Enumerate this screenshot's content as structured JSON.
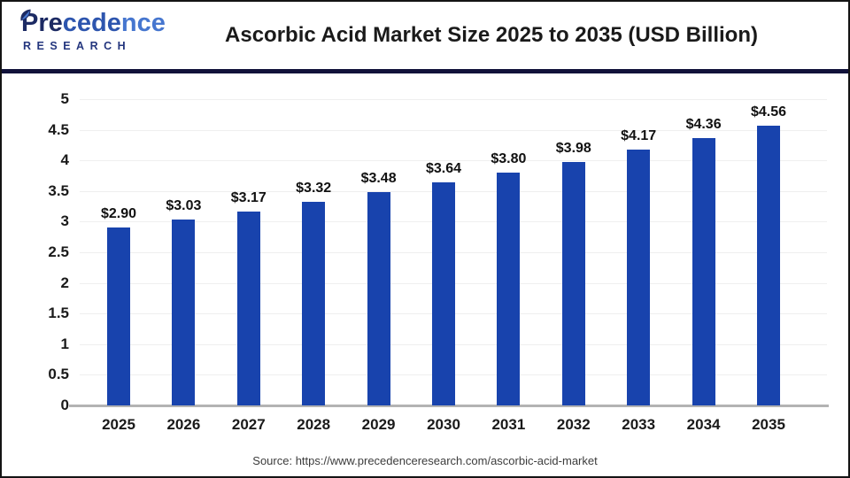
{
  "header": {
    "logo": {
      "part1": "Pre",
      "part2": "cede",
      "part3": "nce",
      "bottom": "RESEARCH"
    },
    "title": "Ascorbic Acid Market Size 2025 to 2035 (USD Billion)"
  },
  "chart_data": {
    "type": "bar",
    "title": "Ascorbic Acid Market Size 2025 to 2035 (USD Billion)",
    "categories": [
      "2025",
      "2026",
      "2027",
      "2028",
      "2029",
      "2030",
      "2031",
      "2032",
      "2033",
      "2034",
      "2035"
    ],
    "values": [
      2.9,
      3.03,
      3.17,
      3.32,
      3.48,
      3.64,
      3.8,
      3.98,
      4.17,
      4.36,
      4.56
    ],
    "value_labels": [
      "$2.90",
      "$3.03",
      "$3.17",
      "$3.32",
      "$3.48",
      "$3.64",
      "$3.80",
      "$3.98",
      "$4.17",
      "$4.36",
      "$4.56"
    ],
    "xlabel": "",
    "ylabel": "",
    "ylim": [
      0,
      5
    ],
    "ytick_step": 0.5,
    "yticks": [
      "0",
      "0.5",
      "1",
      "1.5",
      "2",
      "2.5",
      "3",
      "3.5",
      "4",
      "4.5",
      "5"
    ],
    "grid": true,
    "legend": false,
    "bar_color": "#1843ad",
    "gridline_color": "#efefef",
    "baseline_color": "#b3b3b3"
  },
  "footer": {
    "source": "Source: https://www.precedenceresearch.com/ascorbic-acid-market"
  },
  "colors": {
    "accent_blue": "#1843ad",
    "divider_navy": "#11123a",
    "logo_dark": "#1c2a63",
    "logo_mid": "#2d55ae",
    "logo_light": "#4676cf",
    "text": "#1a1a1a"
  }
}
